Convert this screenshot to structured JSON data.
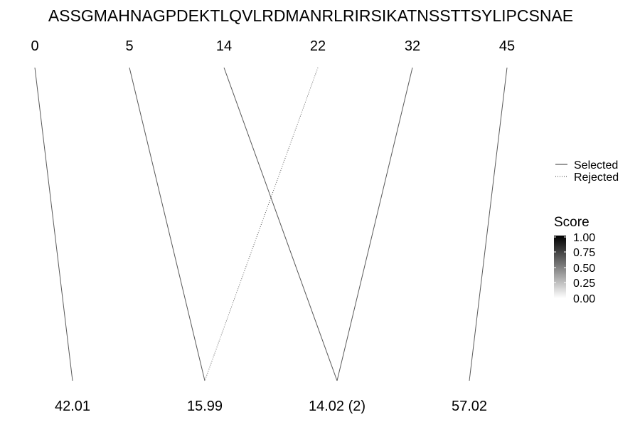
{
  "sequence": "ASSGMAHNAGPDEKTLQVLRDMANRLRIRSIKATNSSTTSYLIPCSNAE",
  "positions": [
    "0",
    "5",
    "14",
    "22",
    "32",
    "45"
  ],
  "masses": [
    "42.01",
    "15.99",
    "14.02 (2)",
    "57.02"
  ],
  "links": [
    {
      "from": 0,
      "to": 0,
      "status": "selected",
      "score": 1.0
    },
    {
      "from": 1,
      "to": 1,
      "status": "selected",
      "score": 1.0
    },
    {
      "from": 2,
      "to": 2,
      "status": "selected",
      "score": 1.0
    },
    {
      "from": 3,
      "to": 1,
      "status": "rejected",
      "score": 1.0
    },
    {
      "from": 4,
      "to": 2,
      "status": "selected",
      "score": 1.0
    },
    {
      "from": 5,
      "to": 3,
      "status": "selected",
      "score": 1.0
    }
  ],
  "line_legend": {
    "selected": "Selected",
    "rejected": "Rejected"
  },
  "score_legend": {
    "title": "Score",
    "ticks": [
      "1.00",
      "0.75",
      "0.50",
      "0.25",
      "0.00"
    ],
    "color_high": "#000000",
    "color_low": "#ffffff"
  },
  "colors": {
    "line": "#595959"
  }
}
